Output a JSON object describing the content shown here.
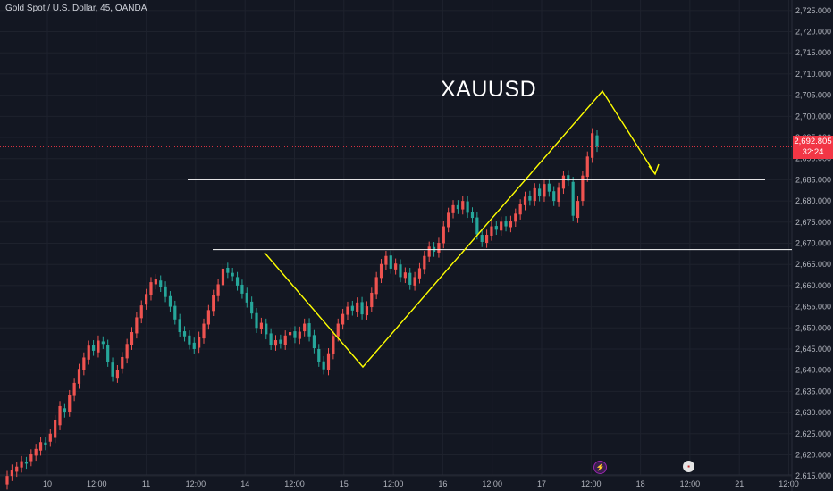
{
  "header": {
    "symbol_info": "Gold Spot / U.S. Dollar, 45, OANDA"
  },
  "annotation": {
    "title": "XAUUSD"
  },
  "price_tag": {
    "price": "2,692.805",
    "countdown": "32:24"
  },
  "colors": {
    "background": "#131722",
    "up": "#26a69a",
    "down": "#ef5350",
    "drawing": "#ffff00",
    "level": "#ffffff",
    "price_line": "#f23645",
    "axis_text": "#b2b5be",
    "grid": "#1e222d"
  },
  "icons": {
    "event_1": "lightning-icon",
    "event_2": "us-flag-icon"
  },
  "chart_data": {
    "type": "candlestick",
    "title": "Gold Spot / U.S. Dollar, 45, OANDA",
    "ylim": [
      2612.5,
      2727.5
    ],
    "y_ticks": [
      "2,725.000",
      "2,720.000",
      "2,715.000",
      "2,710.000",
      "2,705.000",
      "2,700.000",
      "2,695.000",
      "2,690.000",
      "2,685.000",
      "2,680.000",
      "2,675.000",
      "2,670.000",
      "2,665.000",
      "2,660.000",
      "2,655.000",
      "2,650.000",
      "2,645.000",
      "2,640.000",
      "2,635.000",
      "2,630.000",
      "2,625.000",
      "2,620.000",
      "2,615.000"
    ],
    "x_ticks": [
      "10",
      "12:00",
      "11",
      "12:00",
      "14",
      "12:00",
      "15",
      "12:00",
      "16",
      "12:00",
      "17",
      "12:00",
      "18",
      "12:00",
      "21",
      "12:00"
    ],
    "price": {
      "open": 2695.5,
      "close": 2692.8,
      "path": [
        [
          2615.0,
          2613.0
        ],
        [
          2616.5,
          2615.0
        ],
        [
          2617.2,
          2616.0
        ],
        [
          2618.5,
          2617.0
        ],
        [
          2617.9,
          2618.3
        ],
        [
          2620.1,
          2618.5
        ],
        [
          2621.4,
          2619.8
        ],
        [
          2623.0,
          2621.0
        ],
        [
          2622.3,
          2622.9
        ],
        [
          2625.0,
          2623.1
        ],
        [
          2628.2,
          2624.0
        ],
        [
          2631.5,
          2627.0
        ],
        [
          2630.0,
          2631.0
        ],
        [
          2634.1,
          2630.2
        ],
        [
          2637.0,
          2633.9
        ],
        [
          2640.3,
          2636.8
        ],
        [
          2643.0,
          2640.0
        ],
        [
          2645.8,
          2642.5
        ],
        [
          2644.6,
          2645.9
        ],
        [
          2647.0,
          2644.2
        ],
        [
          2646.2,
          2646.8
        ],
        [
          2642.0,
          2646.0
        ],
        [
          2638.5,
          2641.8
        ],
        [
          2640.0,
          2638.2
        ],
        [
          2643.1,
          2640.4
        ],
        [
          2646.2,
          2642.8
        ],
        [
          2649.0,
          2646.0
        ],
        [
          2652.5,
          2648.7
        ],
        [
          2655.3,
          2652.3
        ],
        [
          2658.0,
          2655.5
        ],
        [
          2660.8,
          2657.7
        ],
        [
          2661.5,
          2660.3
        ],
        [
          2659.7,
          2661.2
        ],
        [
          2657.3,
          2659.8
        ],
        [
          2655.0,
          2657.5
        ],
        [
          2652.0,
          2655.2
        ],
        [
          2649.0,
          2652.1
        ],
        [
          2648.0,
          2649.2
        ],
        [
          2646.1,
          2648.2
        ],
        [
          2645.0,
          2646.5
        ],
        [
          2647.9,
          2645.3
        ],
        [
          2651.0,
          2647.5
        ],
        [
          2654.2,
          2650.8
        ],
        [
          2657.8,
          2654.0
        ],
        [
          2660.3,
          2657.5
        ],
        [
          2664.0,
          2660.1
        ],
        [
          2663.0,
          2664.2
        ],
        [
          2662.2,
          2663.0
        ],
        [
          2660.0,
          2662.0
        ],
        [
          2658.1,
          2660.2
        ],
        [
          2656.0,
          2658.3
        ],
        [
          2653.4,
          2656.2
        ],
        [
          2650.0,
          2653.5
        ],
        [
          2651.2,
          2649.8
        ],
        [
          2648.5,
          2651.0
        ],
        [
          2646.0,
          2648.7
        ],
        [
          2647.1,
          2645.8
        ],
        [
          2646.3,
          2647.2
        ],
        [
          2648.2,
          2646.0
        ],
        [
          2649.0,
          2648.3
        ],
        [
          2647.6,
          2649.2
        ],
        [
          2649.1,
          2647.4
        ],
        [
          2651.0,
          2649.2
        ],
        [
          2648.0,
          2651.1
        ],
        [
          2645.2,
          2648.3
        ],
        [
          2642.0,
          2645.0
        ],
        [
          2640.2,
          2642.1
        ],
        [
          2644.0,
          2640.0
        ],
        [
          2648.1,
          2643.8
        ],
        [
          2651.0,
          2648.0
        ],
        [
          2653.3,
          2650.8
        ],
        [
          2655.0,
          2653.1
        ],
        [
          2654.1,
          2655.2
        ],
        [
          2656.0,
          2653.8
        ],
        [
          2653.2,
          2656.1
        ],
        [
          2655.1,
          2653.0
        ],
        [
          2658.3,
          2654.9
        ],
        [
          2662.0,
          2658.0
        ],
        [
          2665.1,
          2661.8
        ],
        [
          2667.0,
          2664.9
        ],
        [
          2664.0,
          2667.1
        ],
        [
          2665.2,
          2663.8
        ],
        [
          2662.0,
          2665.0
        ],
        [
          2663.1,
          2661.8
        ],
        [
          2660.2,
          2663.0
        ],
        [
          2662.0,
          2660.0
        ],
        [
          2664.1,
          2661.7
        ],
        [
          2667.0,
          2663.9
        ],
        [
          2669.2,
          2666.8
        ],
        [
          2668.0,
          2669.1
        ],
        [
          2670.1,
          2667.8
        ],
        [
          2674.0,
          2670.0
        ],
        [
          2677.2,
          2673.8
        ],
        [
          2679.0,
          2677.1
        ],
        [
          2678.1,
          2679.0
        ],
        [
          2680.0,
          2678.0
        ],
        [
          2677.2,
          2679.9
        ],
        [
          2676.0,
          2677.3
        ],
        [
          2672.1,
          2676.1
        ],
        [
          2670.3,
          2672.0
        ],
        [
          2672.0,
          2670.1
        ],
        [
          2674.0,
          2671.8
        ],
        [
          2673.2,
          2674.1
        ],
        [
          2675.1,
          2673.0
        ],
        [
          2674.0,
          2675.2
        ],
        [
          2675.3,
          2673.8
        ],
        [
          2677.0,
          2675.1
        ],
        [
          2679.2,
          2676.8
        ],
        [
          2681.0,
          2679.0
        ],
        [
          2680.1,
          2681.2
        ],
        [
          2683.0,
          2680.0
        ],
        [
          2681.1,
          2682.9
        ],
        [
          2684.0,
          2681.0
        ],
        [
          2682.2,
          2684.1
        ],
        [
          2680.0,
          2682.3
        ],
        [
          2683.1,
          2679.8
        ],
        [
          2686.0,
          2682.9
        ],
        [
          2684.8,
          2686.1
        ],
        [
          2676.5,
          2684.5
        ],
        [
          2680.0,
          2676.0
        ],
        [
          2686.0,
          2680.0
        ],
        [
          2690.5,
          2685.7
        ],
        [
          2696.0,
          2690.2
        ],
        [
          2692.8,
          2695.5
        ]
      ]
    },
    "levels": [
      2685.0,
      2668.5
    ],
    "price_line": 2692.805
  }
}
